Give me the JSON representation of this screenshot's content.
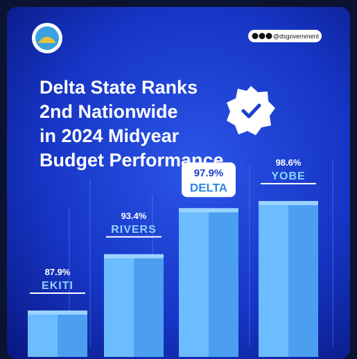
{
  "chart_data": {
    "type": "bar",
    "title": [
      "Delta State Ranks",
      "2nd Nationwide",
      "in 2024 Midyear",
      "Budget Performance"
    ],
    "handle": "@dsgovernment",
    "categories": [
      "EKITI",
      "RIVERS",
      "DELTA",
      "YOBE"
    ],
    "values": [
      87.9,
      93.4,
      97.9,
      98.6
    ],
    "value_labels": [
      "87.9%",
      "93.4%",
      "97.9%",
      "98.6%"
    ],
    "highlight": "DELTA",
    "color": "#5ab2ff"
  }
}
